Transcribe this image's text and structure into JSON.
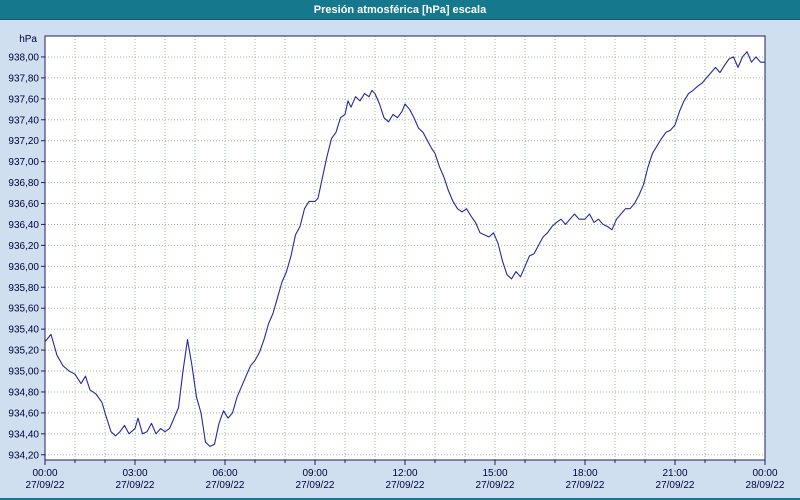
{
  "window": {
    "title": "Presión atmosférica [hPa] escala"
  },
  "colors": {
    "titlebar": "#15788c",
    "background": "#cfdfef",
    "plot_background": "#ffffff",
    "grid": "#9abc9a",
    "line": "#28289b",
    "axis_text": "#00003c",
    "plot_border": "#1f1f5f"
  },
  "chart_data": {
    "type": "line",
    "title": "Presión atmosférica [hPa] escala",
    "ylabel": "hPa",
    "xlabel": "",
    "ylim": [
      934.2,
      938.0
    ],
    "y_tick_step": 0.2,
    "draw_range": [
      934.15,
      938.2
    ],
    "x_range_hours": [
      0,
      24
    ],
    "grid": "dotted; vertical every hour, horizontal every 0.2 hPa",
    "legend": "none",
    "y_ticks": [
      {
        "v": 938.0,
        "label": "938,00"
      },
      {
        "v": 937.8,
        "label": "937,80"
      },
      {
        "v": 937.6,
        "label": "937,60"
      },
      {
        "v": 937.4,
        "label": "937,40"
      },
      {
        "v": 937.2,
        "label": "937,20"
      },
      {
        "v": 937.0,
        "label": "937,00"
      },
      {
        "v": 936.8,
        "label": "936,80"
      },
      {
        "v": 936.6,
        "label": "936,60"
      },
      {
        "v": 936.4,
        "label": "936,40"
      },
      {
        "v": 936.2,
        "label": "936,20"
      },
      {
        "v": 936.0,
        "label": "936,00"
      },
      {
        "v": 935.8,
        "label": "935,80"
      },
      {
        "v": 935.6,
        "label": "935,60"
      },
      {
        "v": 935.4,
        "label": "935,40"
      },
      {
        "v": 935.2,
        "label": "935,20"
      },
      {
        "v": 935.0,
        "label": "935,00"
      },
      {
        "v": 934.8,
        "label": "934,80"
      },
      {
        "v": 934.6,
        "label": "934,60"
      },
      {
        "v": 934.4,
        "label": "934,40"
      },
      {
        "v": 934.2,
        "label": "934,20"
      }
    ],
    "x_ticks": [
      {
        "h": 0,
        "time": "00:00",
        "date": "27/09/22"
      },
      {
        "h": 3,
        "time": "03:00",
        "date": "27/09/22"
      },
      {
        "h": 6,
        "time": "06:00",
        "date": "27/09/22"
      },
      {
        "h": 9,
        "time": "09:00",
        "date": "27/09/22"
      },
      {
        "h": 12,
        "time": "12:00",
        "date": "27/09/22"
      },
      {
        "h": 15,
        "time": "15:00",
        "date": "27/09/22"
      },
      {
        "h": 18,
        "time": "18:00",
        "date": "27/09/22"
      },
      {
        "h": 21,
        "time": "21:00",
        "date": "27/09/22"
      },
      {
        "h": 24,
        "time": "00:00",
        "date": "28/09/22"
      }
    ],
    "series": [
      {
        "name": "Presión atmosférica [hPa]",
        "points": [
          [
            0,
            935.28
          ],
          [
            0.2,
            935.35
          ],
          [
            0.4,
            935.15
          ],
          [
            0.6,
            935.05
          ],
          [
            0.8,
            935.0
          ],
          [
            1.0,
            934.97
          ],
          [
            1.2,
            934.88
          ],
          [
            1.35,
            934.95
          ],
          [
            1.5,
            934.82
          ],
          [
            1.7,
            934.78
          ],
          [
            1.9,
            934.7
          ],
          [
            2.0,
            934.6
          ],
          [
            2.2,
            934.42
          ],
          [
            2.35,
            934.38
          ],
          [
            2.5,
            934.42
          ],
          [
            2.65,
            934.48
          ],
          [
            2.8,
            934.4
          ],
          [
            3.0,
            934.45
          ],
          [
            3.1,
            934.55
          ],
          [
            3.25,
            934.4
          ],
          [
            3.4,
            934.42
          ],
          [
            3.55,
            934.5
          ],
          [
            3.7,
            934.4
          ],
          [
            3.85,
            934.45
          ],
          [
            4.0,
            934.42
          ],
          [
            4.15,
            934.45
          ],
          [
            4.3,
            934.55
          ],
          [
            4.45,
            934.65
          ],
          [
            4.6,
            935.0
          ],
          [
            4.75,
            935.3
          ],
          [
            4.9,
            935.05
          ],
          [
            5.05,
            934.75
          ],
          [
            5.2,
            934.6
          ],
          [
            5.35,
            934.32
          ],
          [
            5.5,
            934.28
          ],
          [
            5.65,
            934.3
          ],
          [
            5.8,
            934.5
          ],
          [
            5.95,
            934.62
          ],
          [
            6.1,
            934.55
          ],
          [
            6.25,
            934.6
          ],
          [
            6.4,
            934.75
          ],
          [
            6.55,
            934.85
          ],
          [
            6.7,
            934.95
          ],
          [
            6.85,
            935.05
          ],
          [
            7.0,
            935.1
          ],
          [
            7.15,
            935.18
          ],
          [
            7.3,
            935.3
          ],
          [
            7.45,
            935.45
          ],
          [
            7.6,
            935.55
          ],
          [
            7.75,
            935.7
          ],
          [
            7.9,
            935.85
          ],
          [
            8.05,
            935.95
          ],
          [
            8.2,
            936.1
          ],
          [
            8.35,
            936.3
          ],
          [
            8.5,
            936.38
          ],
          [
            8.65,
            936.55
          ],
          [
            8.8,
            936.62
          ],
          [
            9.0,
            936.62
          ],
          [
            9.1,
            936.65
          ],
          [
            9.25,
            936.85
          ],
          [
            9.4,
            937.05
          ],
          [
            9.55,
            937.22
          ],
          [
            9.7,
            937.28
          ],
          [
            9.85,
            937.42
          ],
          [
            10.0,
            937.45
          ],
          [
            10.1,
            937.58
          ],
          [
            10.2,
            937.52
          ],
          [
            10.35,
            937.62
          ],
          [
            10.5,
            937.58
          ],
          [
            10.65,
            937.65
          ],
          [
            10.8,
            937.62
          ],
          [
            10.9,
            937.68
          ],
          [
            11.0,
            937.65
          ],
          [
            11.15,
            937.55
          ],
          [
            11.3,
            937.42
          ],
          [
            11.45,
            937.38
          ],
          [
            11.6,
            937.45
          ],
          [
            11.75,
            937.42
          ],
          [
            11.9,
            937.48
          ],
          [
            12.0,
            937.55
          ],
          [
            12.15,
            937.5
          ],
          [
            12.3,
            937.42
          ],
          [
            12.45,
            937.32
          ],
          [
            12.6,
            937.28
          ],
          [
            12.75,
            937.2
          ],
          [
            12.9,
            937.12
          ],
          [
            13.0,
            937.08
          ],
          [
            13.15,
            936.95
          ],
          [
            13.3,
            936.85
          ],
          [
            13.45,
            936.72
          ],
          [
            13.6,
            936.62
          ],
          [
            13.75,
            936.55
          ],
          [
            13.9,
            936.52
          ],
          [
            14.05,
            936.55
          ],
          [
            14.2,
            936.48
          ],
          [
            14.35,
            936.42
          ],
          [
            14.5,
            936.32
          ],
          [
            14.65,
            936.3
          ],
          [
            14.8,
            936.28
          ],
          [
            14.95,
            936.32
          ],
          [
            15.1,
            936.22
          ],
          [
            15.25,
            936.05
          ],
          [
            15.4,
            935.92
          ],
          [
            15.55,
            935.88
          ],
          [
            15.7,
            935.95
          ],
          [
            15.85,
            935.9
          ],
          [
            16.0,
            936.0
          ],
          [
            16.15,
            936.1
          ],
          [
            16.3,
            936.12
          ],
          [
            16.45,
            936.2
          ],
          [
            16.6,
            936.28
          ],
          [
            16.75,
            936.32
          ],
          [
            16.9,
            936.38
          ],
          [
            17.05,
            936.42
          ],
          [
            17.2,
            936.45
          ],
          [
            17.35,
            936.4
          ],
          [
            17.5,
            936.45
          ],
          [
            17.65,
            936.5
          ],
          [
            17.8,
            936.45
          ],
          [
            18.0,
            936.45
          ],
          [
            18.15,
            936.5
          ],
          [
            18.3,
            936.42
          ],
          [
            18.45,
            936.45
          ],
          [
            18.6,
            936.4
          ],
          [
            18.75,
            936.38
          ],
          [
            18.9,
            936.35
          ],
          [
            19.05,
            936.45
          ],
          [
            19.2,
            936.5
          ],
          [
            19.35,
            936.55
          ],
          [
            19.5,
            936.55
          ],
          [
            19.65,
            936.6
          ],
          [
            19.8,
            936.68
          ],
          [
            19.95,
            936.78
          ],
          [
            20.1,
            936.95
          ],
          [
            20.25,
            937.08
          ],
          [
            20.4,
            937.15
          ],
          [
            20.55,
            937.22
          ],
          [
            20.7,
            937.28
          ],
          [
            20.85,
            937.3
          ],
          [
            21.0,
            937.35
          ],
          [
            21.15,
            937.48
          ],
          [
            21.3,
            937.58
          ],
          [
            21.45,
            937.65
          ],
          [
            21.6,
            937.68
          ],
          [
            21.75,
            937.72
          ],
          [
            21.9,
            937.75
          ],
          [
            22.05,
            937.8
          ],
          [
            22.2,
            937.85
          ],
          [
            22.35,
            937.9
          ],
          [
            22.5,
            937.85
          ],
          [
            22.65,
            937.92
          ],
          [
            22.8,
            937.98
          ],
          [
            22.95,
            938.0
          ],
          [
            23.1,
            937.9
          ],
          [
            23.25,
            938.0
          ],
          [
            23.4,
            938.05
          ],
          [
            23.55,
            937.95
          ],
          [
            23.7,
            938.0
          ],
          [
            23.85,
            937.95
          ],
          [
            24.0,
            937.95
          ]
        ]
      }
    ]
  }
}
